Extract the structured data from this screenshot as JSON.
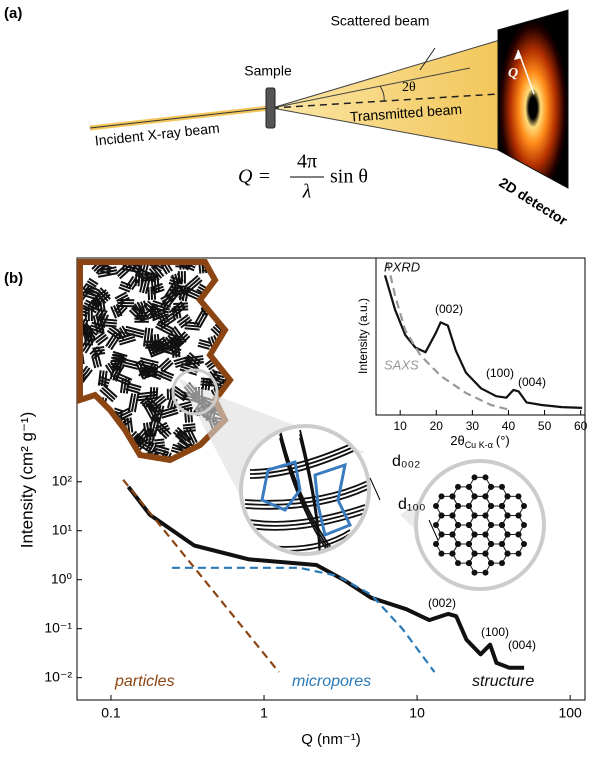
{
  "diagram": {
    "label": "(a)",
    "scattered_beam": "Scattered beam",
    "sample": "Sample",
    "angle": "2θ",
    "incident_beam": "Incident X-ray beam",
    "transmitted_beam": "Transmitted beam",
    "detector": "2D detector",
    "q_vector": "Q",
    "equation": {
      "lhs": "Q =",
      "numerator": "4π",
      "denominator": "λ",
      "function": "sin θ"
    }
  },
  "chart_data": [
    {
      "type": "line",
      "label": "(b)",
      "x_label": "Q (nm⁻¹)",
      "y_label": "Intensity (cm² g⁻¹)",
      "x_scale": "log",
      "y_scale": "log",
      "xlim": [
        0.06,
        125
      ],
      "xticks": [
        0.1,
        1,
        10,
        100
      ],
      "ylim": [
        0.0035,
        3700000
      ],
      "yticks": [
        {
          "value": 0.01,
          "label": "10⁻²"
        },
        {
          "value": 0.1,
          "label": "10⁻¹"
        },
        {
          "value": 1,
          "label": "10⁰"
        },
        {
          "value": 10,
          "label": "10¹"
        },
        {
          "value": 100,
          "label": "10²"
        }
      ],
      "series": [
        {
          "name": "structure",
          "color": "#111111",
          "line_style": "solid",
          "x": [
            0.13,
            0.18,
            0.35,
            0.8,
            2.2,
            3.3,
            5,
            8.5,
            12,
            16,
            18,
            21,
            26,
            30,
            33,
            40,
            50
          ],
          "values": [
            79,
            21,
            5,
            2.6,
            2.0,
            1.0,
            0.43,
            0.25,
            0.15,
            0.2,
            0.18,
            0.06,
            0.03,
            0.047,
            0.02,
            0.016,
            0.016
          ]
        },
        {
          "name": "particles",
          "color": "#8b4513",
          "line_style": "dashed",
          "x": [
            0.12,
            1.25
          ],
          "values": [
            110,
            0.013
          ]
        },
        {
          "name": "micropores",
          "color": "#2a7ab8",
          "line_style": "dashed",
          "x": [
            0.25,
            1.7,
            3,
            5,
            8,
            13
          ],
          "values": [
            1.75,
            1.75,
            1.2,
            0.5,
            0.1,
            0.013
          ]
        }
      ],
      "annotations": [
        "(002)",
        "(100)",
        "(004)",
        "d₀₀₂",
        "d₁₀₀"
      ]
    },
    {
      "type": "line",
      "y_label": "Intensity (a.u.)",
      "x_label": "2θ",
      "x_label_subscript": "Cu K-α",
      "x_label_unit": "(°)",
      "xlim": [
        3.3,
        61.2
      ],
      "xticks": [
        10,
        20,
        30,
        40,
        50,
        60
      ],
      "ylim": [
        0,
        1
      ],
      "series": [
        {
          "name": "PXRD",
          "color": "#111111",
          "line_style": "solid",
          "x": [
            5.8,
            8.6,
            11.4,
            14.2,
            17,
            19.8,
            21.2,
            23.2,
            25.4,
            28.2,
            32.4,
            36.6,
            39.4,
            41.4,
            42.8,
            45,
            49.2,
            54.8,
            60.4
          ],
          "values": [
            0.89,
            0.67,
            0.51,
            0.43,
            0.4,
            0.52,
            0.59,
            0.57,
            0.41,
            0.27,
            0.17,
            0.12,
            0.11,
            0.16,
            0.15,
            0.08,
            0.064,
            0.05,
            0.045
          ]
        },
        {
          "name": "SAXS",
          "color": "#999999",
          "line_style": "dashed",
          "x": [
            6.5,
            8.6,
            11.4,
            15.6,
            21.2,
            28.2,
            35.2,
            40.8
          ],
          "values": [
            0.97,
            0.76,
            0.54,
            0.38,
            0.25,
            0.14,
            0.064,
            0.03
          ]
        }
      ],
      "annotations": [
        "(002)",
        "(100)",
        "(004)"
      ]
    }
  ]
}
